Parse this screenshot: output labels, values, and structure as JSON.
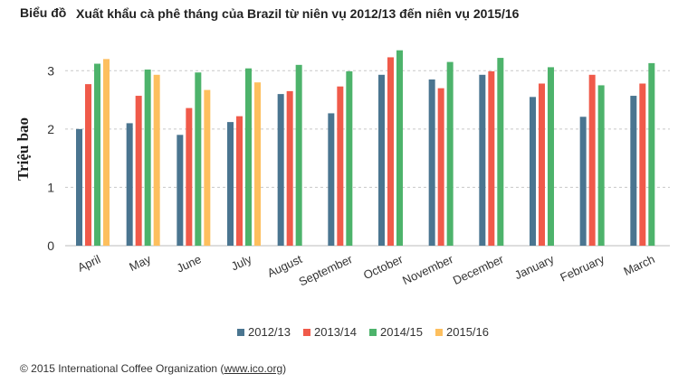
{
  "title": {
    "prefix": "Biểu đồ",
    "text": "Xuất khẩu cà phê tháng của Brazil từ niên vụ 2012/13 đến niên vụ 2015/16"
  },
  "footer": {
    "copyright": "© 2015 International Coffee Organization (",
    "link": "www.ico.org",
    "close": ")"
  },
  "chart_data": {
    "type": "bar",
    "ylabel": "Triệu bao",
    "xlabel": "",
    "ylim": [
      0,
      3.5
    ],
    "yticks": [
      "0",
      "1",
      "2",
      "3"
    ],
    "grid": true,
    "legend_position": "bottom",
    "categories": [
      "April",
      "May",
      "June",
      "July",
      "August",
      "September",
      "October",
      "November",
      "December",
      "January",
      "February",
      "March"
    ],
    "series": [
      {
        "name": "2012/13",
        "color": "#4a7590",
        "values": [
          2.0,
          2.1,
          1.9,
          2.12,
          2.6,
          2.27,
          2.93,
          2.85,
          2.93,
          2.55,
          2.21,
          2.57
        ]
      },
      {
        "name": "2013/14",
        "color": "#f05a4a",
        "values": [
          2.77,
          2.57,
          2.36,
          2.22,
          2.65,
          2.73,
          3.23,
          2.7,
          2.99,
          2.78,
          2.93,
          2.78
        ]
      },
      {
        "name": "2014/15",
        "color": "#4db36b",
        "values": [
          3.12,
          3.02,
          2.97,
          3.04,
          3.1,
          2.99,
          3.35,
          3.15,
          3.22,
          3.06,
          2.75,
          3.13
        ]
      },
      {
        "name": "2015/16",
        "color": "#fdbf5e",
        "values": [
          3.2,
          2.93,
          2.67,
          2.8,
          null,
          null,
          null,
          null,
          null,
          null,
          null,
          null
        ]
      }
    ]
  }
}
